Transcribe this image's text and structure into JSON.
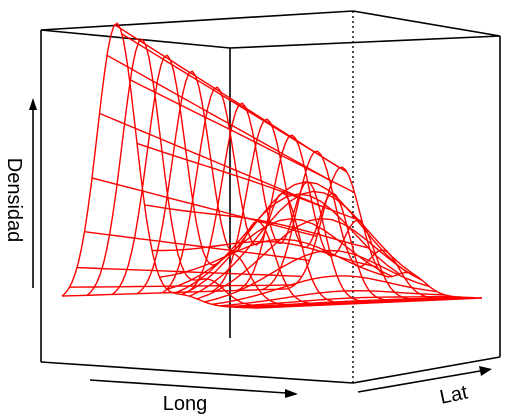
{
  "chart_data": {
    "type": "surface",
    "subtype": "3d-perspective-wireframe",
    "xlabel": "Long",
    "ylabel": "Lat",
    "zlabel": "Densidad",
    "axis_arrows": true,
    "box": true,
    "mesh_color": "#ff0000",
    "grid": {
      "long_lines": 27,
      "lat_lines": 10
    },
    "peaks": [
      {
        "long": 0.28,
        "lat": 0.0,
        "height": 1.0,
        "note": "tallest ridge at front-left"
      },
      {
        "long": 0.62,
        "lat": 0.55,
        "height": 0.42,
        "note": "secondary hump toward the back"
      }
    ]
  },
  "colors": {
    "mesh": "#ff0000",
    "box": "#000000",
    "background": "#ffffff"
  }
}
